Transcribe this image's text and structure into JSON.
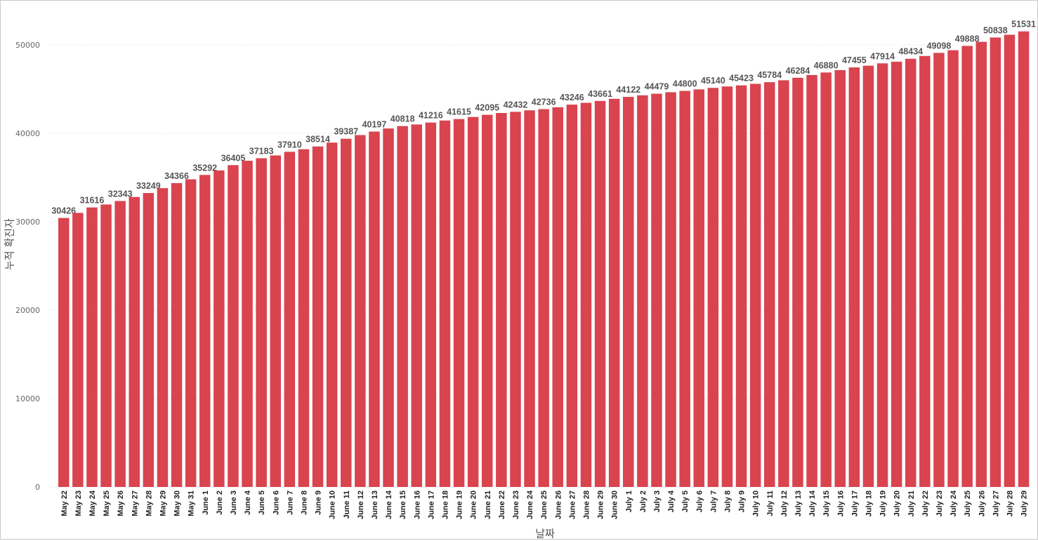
{
  "chart_data": {
    "type": "bar",
    "xlabel": "날짜",
    "ylabel": "누적 확진자",
    "ylim": [
      0,
      52000
    ],
    "yticks": [
      0,
      10000,
      20000,
      30000,
      40000,
      50000
    ],
    "grid": true,
    "bar_color": "#d9444f",
    "categories": [
      "May 22",
      "May 23",
      "May 24",
      "May 25",
      "May 26",
      "May 27",
      "May 28",
      "May 29",
      "May 30",
      "May 31",
      "June 1",
      "June 2",
      "June 3",
      "June 4",
      "June 5",
      "June 6",
      "June 7",
      "June 8",
      "June 9",
      "June 10",
      "June 11",
      "June 12",
      "June 13",
      "June 14",
      "June 15",
      "June 16",
      "June 17",
      "June 18",
      "June 19",
      "June 20",
      "June 21",
      "June 22",
      "June 23",
      "June 24",
      "June 25",
      "June 26",
      "June 27",
      "June 28",
      "June 29",
      "June 30",
      "July 1",
      "July 2",
      "July 3",
      "July 4",
      "July 5",
      "July 6",
      "July 7",
      "July 8",
      "July 9",
      "July 10",
      "July 11",
      "July 12",
      "July 13",
      "July 14",
      "July 15",
      "July 16",
      "July 17",
      "July 18",
      "July 19",
      "July 20",
      "July 21",
      "July 22",
      "July 23",
      "July 24",
      "July 25",
      "July 26",
      "July 27",
      "July 28",
      "July 29"
    ],
    "values": [
      30426,
      31000,
      31616,
      31950,
      32343,
      32800,
      33249,
      33800,
      34366,
      34800,
      35292,
      35800,
      36405,
      36900,
      37183,
      37500,
      37910,
      38200,
      38514,
      38950,
      39387,
      39800,
      40197,
      40550,
      40818,
      41000,
      41216,
      41450,
      41615,
      41850,
      42095,
      42300,
      42432,
      42600,
      42736,
      42950,
      43246,
      43450,
      43661,
      43900,
      44122,
      44300,
      44479,
      44650,
      44800,
      44970,
      45140,
      45300,
      45423,
      45600,
      45784,
      46000,
      46284,
      46600,
      46880,
      47150,
      47455,
      47650,
      47914,
      48100,
      48434,
      48750,
      49098,
      49400,
      49888,
      50350,
      50838,
      51150,
      51531
    ],
    "data_labels": [
      "30426",
      "",
      "31616",
      "",
      "32343",
      "",
      "33249",
      "",
      "34366",
      "",
      "35292",
      "",
      "36405",
      "",
      "37183",
      "",
      "37910",
      "",
      "38514",
      "",
      "39387",
      "",
      "40197",
      "",
      "40818",
      "",
      "41216",
      "",
      "41615",
      "",
      "42095",
      "",
      "42432",
      "",
      "42736",
      "",
      "43246",
      "",
      "43661",
      "",
      "44122",
      "",
      "44479",
      "",
      "44800",
      "",
      "45140",
      "",
      "45423",
      "",
      "45784",
      "",
      "46284",
      "",
      "46880",
      "",
      "47455",
      "",
      "47914",
      "",
      "48434",
      "",
      "49098",
      "",
      "49888",
      "",
      "50838",
      "",
      "51531"
    ]
  }
}
